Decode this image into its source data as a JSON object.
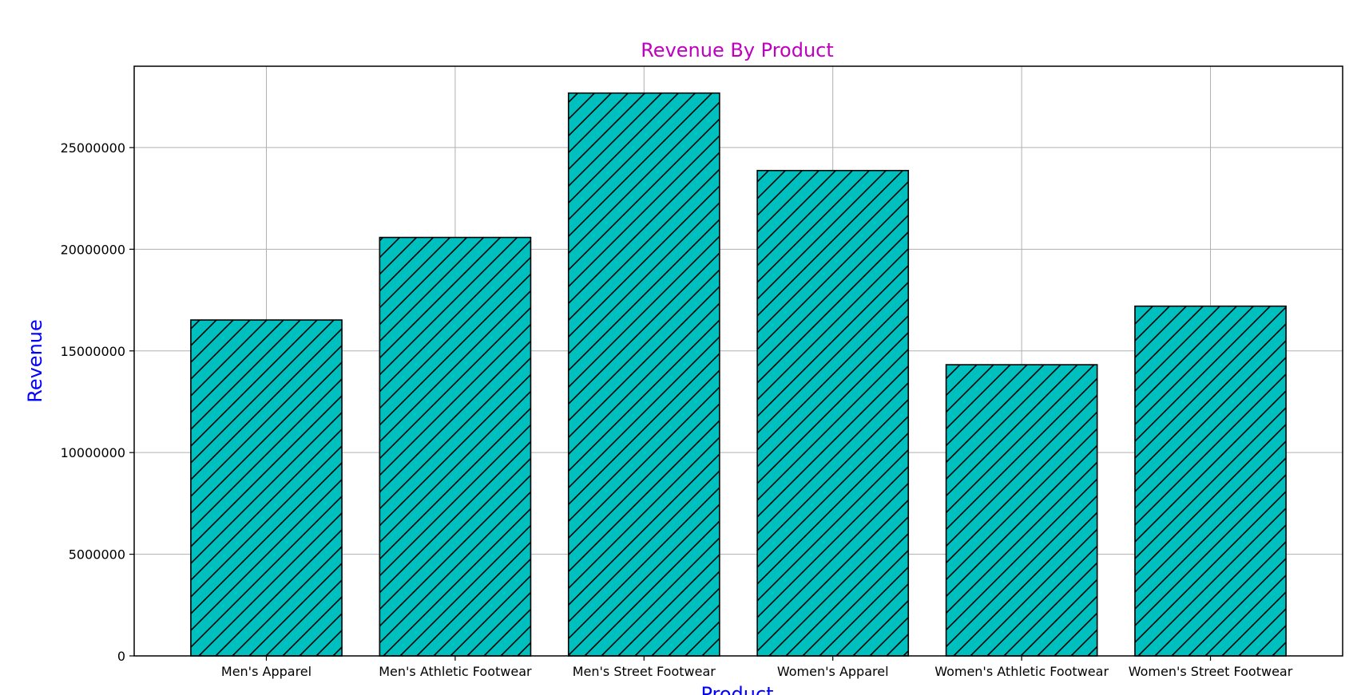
{
  "chart_data": {
    "type": "bar",
    "title": "Revenue By Product",
    "xlabel": "Product",
    "ylabel": "Revenue",
    "categories": [
      "Men's Apparel",
      "Men's Athletic Footwear",
      "Men's Street Footwear",
      "Women's Apparel",
      "Women's Athletic Footwear",
      "Women's Street Footwear"
    ],
    "values": [
      16520000,
      20580000,
      27680000,
      23870000,
      14320000,
      17200000
    ],
    "ylim": [
      0,
      29000000
    ],
    "yticks": [
      0,
      5000000,
      10000000,
      15000000,
      20000000,
      25000000
    ],
    "ytick_labels": [
      "0",
      "5000000",
      "10000000",
      "15000000",
      "20000000",
      "25000000"
    ],
    "grid": true,
    "colors": {
      "bar_fill": "#00bfbf",
      "bar_edge": "#000000",
      "hatch": "#000000",
      "title": "#bf00bf",
      "axis_label": "#0000ff",
      "grid": "#b0b0b0"
    },
    "hatch": "diagonal"
  }
}
